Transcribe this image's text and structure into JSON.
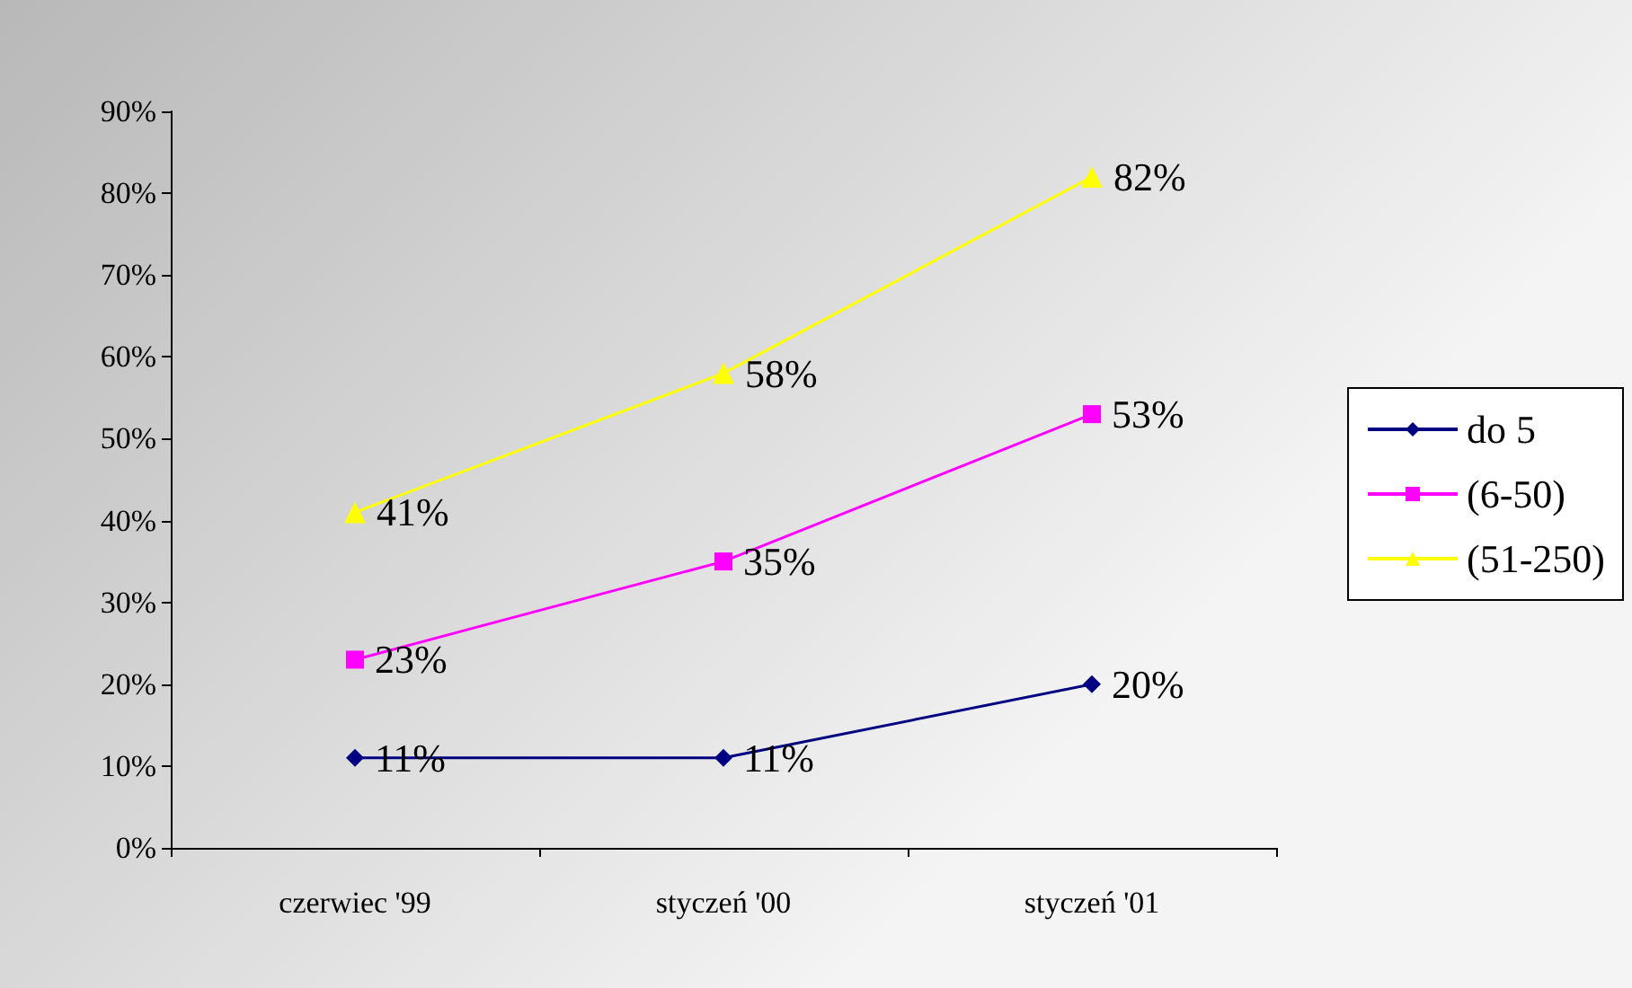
{
  "chart_data": {
    "type": "line",
    "categories": [
      "czerwiec '99",
      "styczeń '00",
      "styczeń '01"
    ],
    "series": [
      {
        "name": "do 5",
        "color": "#000080",
        "marker": "diamond",
        "values": [
          11,
          11,
          20
        ],
        "value_labels": [
          "11%",
          "11%",
          "20%"
        ]
      },
      {
        "name": "(6-50)",
        "color": "#ff00ff",
        "marker": "square",
        "values": [
          23,
          35,
          53
        ],
        "value_labels": [
          "23%",
          "35%",
          "53%"
        ]
      },
      {
        "name": "(51-250)",
        "color": "#ffff00",
        "marker": "triangle",
        "values": [
          41,
          58,
          82
        ],
        "value_labels": [
          "41%",
          "58%",
          "82%"
        ]
      }
    ],
    "ylim": [
      0,
      90
    ],
    "yticks": [
      {
        "value": 0,
        "label": "0%"
      },
      {
        "value": 10,
        "label": "10%"
      },
      {
        "value": 20,
        "label": "20%"
      },
      {
        "value": 30,
        "label": "30%"
      },
      {
        "value": 40,
        "label": "40%"
      },
      {
        "value": 50,
        "label": "50%"
      },
      {
        "value": 60,
        "label": "60%"
      },
      {
        "value": 70,
        "label": "70%"
      },
      {
        "value": 80,
        "label": "80%"
      },
      {
        "value": 90,
        "label": "90%"
      }
    ],
    "grid": false,
    "legend": "right",
    "line_style": "solid"
  }
}
